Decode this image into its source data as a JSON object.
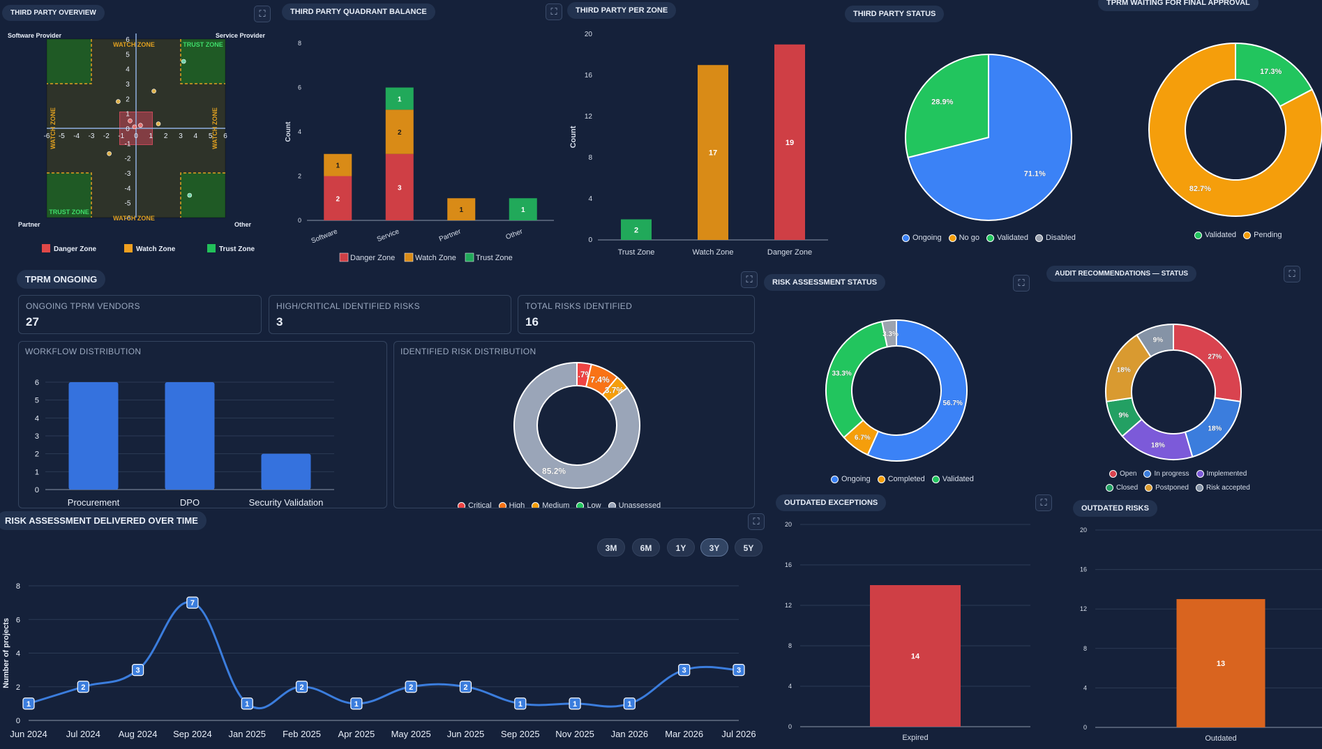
{
  "overview": {
    "title": "THIRD PARTY OVERVIEW",
    "corner_labels": {
      "top_left": "Software Provider",
      "top_right": "Service Provider",
      "bottom_left": "Partner",
      "bottom_right": "Other"
    },
    "zone_labels": {
      "watch": "WATCH ZONE",
      "trust": "TRUST ZONE"
    },
    "axis_ticks": [
      "-6",
      "-5",
      "-4",
      "-3",
      "-2",
      "-1",
      "0",
      "1",
      "2",
      "3",
      "4",
      "5",
      "6"
    ],
    "points": [
      {
        "x": 3.2,
        "y": 4.5,
        "color": "#6fd3a8"
      },
      {
        "x": 1.2,
        "y": 2.5,
        "color": "#e0b34a"
      },
      {
        "x": -1.2,
        "y": 1.8,
        "color": "#e0b34a"
      },
      {
        "x": 1.5,
        "y": 0.3,
        "color": "#e0b34a"
      },
      {
        "x": -0.4,
        "y": 0.5,
        "color": "#e57373"
      },
      {
        "x": -0.1,
        "y": 0.1,
        "color": "#e57373"
      },
      {
        "x": 0.3,
        "y": 0.2,
        "color": "#e57373"
      },
      {
        "x": -1.8,
        "y": -1.7,
        "color": "#e0b34a"
      },
      {
        "x": 3.6,
        "y": -4.5,
        "color": "#6fd3a8"
      }
    ],
    "legend": [
      {
        "label": "Danger Zone",
        "color": "#e04848"
      },
      {
        "label": "Watch Zone",
        "color": "#f0a020"
      },
      {
        "label": "Trust Zone",
        "color": "#22c05a"
      }
    ]
  },
  "quadrant": {
    "title": "THIRD PARTY QUADRANT BALANCE",
    "ylabel": "Count",
    "chart_data": {
      "type": "bar",
      "categories": [
        "Software",
        "Service",
        "Partner",
        "Other"
      ],
      "ylim": [
        0,
        8
      ],
      "yticks": [
        "0",
        "2",
        "4",
        "6",
        "8"
      ],
      "series": [
        {
          "name": "Danger Zone",
          "color": "#cf3f45",
          "values": [
            2,
            3,
            0,
            0
          ]
        },
        {
          "name": "Watch Zone",
          "color": "#d98b17",
          "values": [
            1,
            2,
            1,
            0
          ]
        },
        {
          "name": "Trust Zone",
          "color": "#21a95a",
          "values": [
            0,
            1,
            0,
            1
          ]
        }
      ]
    }
  },
  "perzone": {
    "title": "THIRD PARTY PER ZONE",
    "ylabel": "Count",
    "chart_data": {
      "type": "bar",
      "categories": [
        "Trust Zone",
        "Watch Zone",
        "Danger Zone"
      ],
      "values": [
        2,
        17,
        19
      ],
      "colors": [
        "#21a95a",
        "#d98b17",
        "#cf3f45"
      ],
      "ylim": [
        0,
        20
      ],
      "yticks": [
        "0",
        "4",
        "8",
        "12",
        "16",
        "20"
      ]
    }
  },
  "status": {
    "title": "THIRD PARTY STATUS",
    "chart_data": {
      "type": "pie",
      "slices": [
        {
          "label": "Ongoing",
          "value": 71.1,
          "text": "71.1%",
          "color": "#3b82f6"
        },
        {
          "label": "Validated",
          "value": 28.9,
          "text": "28.9%",
          "color": "#22c55e"
        }
      ]
    },
    "legend": [
      {
        "label": "Ongoing",
        "color": "#3b82f6"
      },
      {
        "label": "No go",
        "color": "#f59e0b"
      },
      {
        "label": "Validated",
        "color": "#22c55e"
      },
      {
        "label": "Disabled",
        "color": "#9ca3af"
      }
    ]
  },
  "approval": {
    "title": "TPRM WAITING FOR FINAL APPROVAL",
    "chart_data": {
      "type": "pie",
      "slices": [
        {
          "label": "Validated",
          "value": 17.3,
          "text": "17.3%",
          "color": "#22c55e"
        },
        {
          "label": "Pending",
          "value": 82.7,
          "text": "82.7%",
          "color": "#f59e0b"
        }
      ]
    },
    "legend": [
      {
        "label": "Validated",
        "color": "#22c55e"
      },
      {
        "label": "Pending",
        "color": "#f59e0b"
      }
    ]
  },
  "ongoing": {
    "title": "TPRM ONGOING",
    "kpis": [
      {
        "label": "ONGOING TPRM VENDORS",
        "value": "27"
      },
      {
        "label": "HIGH/CRITICAL IDENTIFIED RISKS",
        "value": "3"
      },
      {
        "label": "TOTAL RISKS IDENTIFIED",
        "value": "16"
      }
    ],
    "workflow": {
      "title": "WORKFLOW DISTRIBUTION",
      "chart_data": {
        "type": "bar",
        "categories": [
          "Procurement",
          "DPO",
          "Security Validation"
        ],
        "values": [
          6,
          6,
          2
        ],
        "ylim": [
          0,
          6
        ],
        "yticks": [
          "0",
          "1",
          "2",
          "3",
          "4",
          "5",
          "6"
        ],
        "color": "#3572de"
      }
    },
    "riskdist": {
      "title": "IDENTIFIED RISK DISTRIBUTION",
      "chart_data": {
        "type": "pie",
        "slices": [
          {
            "label": "Critical",
            "value": 3.7,
            "text": "3.7%",
            "color": "#ef4444"
          },
          {
            "label": "High",
            "value": 7.4,
            "text": "7.4%",
            "color": "#f97316"
          },
          {
            "label": "Medium",
            "value": 3.7,
            "text": "3.7%",
            "color": "#f59e0b"
          },
          {
            "label": "Unassessed",
            "value": 85.2,
            "text": "85.2%",
            "color": "#9aa5b8"
          }
        ]
      },
      "legend": [
        {
          "label": "Critical",
          "color": "#ef4444"
        },
        {
          "label": "High",
          "color": "#f97316"
        },
        {
          "label": "Medium",
          "color": "#f59e0b"
        },
        {
          "label": "Low",
          "color": "#22c55e"
        },
        {
          "label": "Unassessed",
          "color": "#9aa5b8"
        }
      ]
    }
  },
  "riskstatus": {
    "title": "RISK ASSESSMENT STATUS",
    "chart_data": {
      "type": "pie",
      "slices": [
        {
          "label": "Ongoing",
          "value": 56.7,
          "text": "56.7%",
          "color": "#3b82f6"
        },
        {
          "label": "Completed",
          "value": 6.7,
          "text": "6.7%",
          "color": "#f59e0b"
        },
        {
          "label": "Validated",
          "value": 33.3,
          "text": "33.3%",
          "color": "#22c55e"
        },
        {
          "label": "",
          "value": 3.3,
          "text": "3.3%",
          "color": "#9ca3af"
        }
      ]
    },
    "legend": [
      {
        "label": "Ongoing",
        "color": "#3b82f6"
      },
      {
        "label": "Completed",
        "color": "#f59e0b"
      },
      {
        "label": "Validated",
        "color": "#22c55e"
      }
    ]
  },
  "audit": {
    "title": "AUDIT RECOMMENDATIONS — STATUS",
    "chart_data": {
      "type": "pie",
      "slices": [
        {
          "label": "Open",
          "value": 27,
          "text": "27%",
          "color": "#d9434f"
        },
        {
          "label": "In progress",
          "value": 18,
          "text": "18%",
          "color": "#3b7ddd"
        },
        {
          "label": "Implemented",
          "value": 18,
          "text": "18%",
          "color": "#7c5ad9"
        },
        {
          "label": "Closed",
          "value": 9,
          "text": "9%",
          "color": "#23a063"
        },
        {
          "label": "Postponed",
          "value": 18,
          "text": "18%",
          "color": "#d99a30"
        },
        {
          "label": "Risk accepted",
          "value": 9,
          "text": "9%",
          "color": "#8593a6"
        }
      ]
    },
    "legend_row1": [
      {
        "label": "Open",
        "color": "#d9434f"
      },
      {
        "label": "In progress",
        "color": "#3b7ddd"
      },
      {
        "label": "Implemented",
        "color": "#7c5ad9"
      }
    ],
    "legend_row2": [
      {
        "label": "Closed",
        "color": "#23a063"
      },
      {
        "label": "Postponed",
        "color": "#d99a30"
      },
      {
        "label": "Risk accepted",
        "color": "#8593a6"
      }
    ]
  },
  "delivered": {
    "title": "RISK ASSESSMENT DELIVERED OVER TIME",
    "ranges": [
      "3M",
      "6M",
      "1Y",
      "3Y",
      "5Y"
    ],
    "active_range": "3Y",
    "ylabel": "Number of projects",
    "chart_data": {
      "type": "line",
      "x": [
        "Jun 2024",
        "Jul 2024",
        "Aug 2024",
        "Sep 2024",
        "Jan 2025",
        "Feb 2025",
        "Apr 2025",
        "May 2025",
        "Jun 2025",
        "Sep 2025",
        "Nov 2025",
        "Jan 2026",
        "Mar 2026",
        "Jul 2026"
      ],
      "values": [
        1,
        2,
        3,
        7,
        1,
        2,
        1,
        2,
        2,
        1,
        1,
        1,
        3,
        3
      ],
      "ylim": [
        0,
        8
      ],
      "yticks": [
        "0",
        "2",
        "4",
        "6",
        "8"
      ],
      "color": "#3b7ddd"
    }
  },
  "outdated_exceptions": {
    "title": "OUTDATED EXCEPTIONS",
    "chart_data": {
      "type": "bar",
      "categories": [
        "Expired"
      ],
      "values": [
        14
      ],
      "color": "#cf3f45",
      "ylim": [
        0,
        20
      ],
      "yticks": [
        "0",
        "4",
        "8",
        "12",
        "16",
        "20"
      ]
    }
  },
  "outdated_risks": {
    "title": "OUTDATED RISKS",
    "chart_data": {
      "type": "bar",
      "categories": [
        "Outdated"
      ],
      "values": [
        13
      ],
      "color": "#d9641f",
      "ylim": [
        0,
        20
      ],
      "yticks": [
        "0",
        "4",
        "8",
        "12",
        "16",
        "20"
      ]
    }
  }
}
